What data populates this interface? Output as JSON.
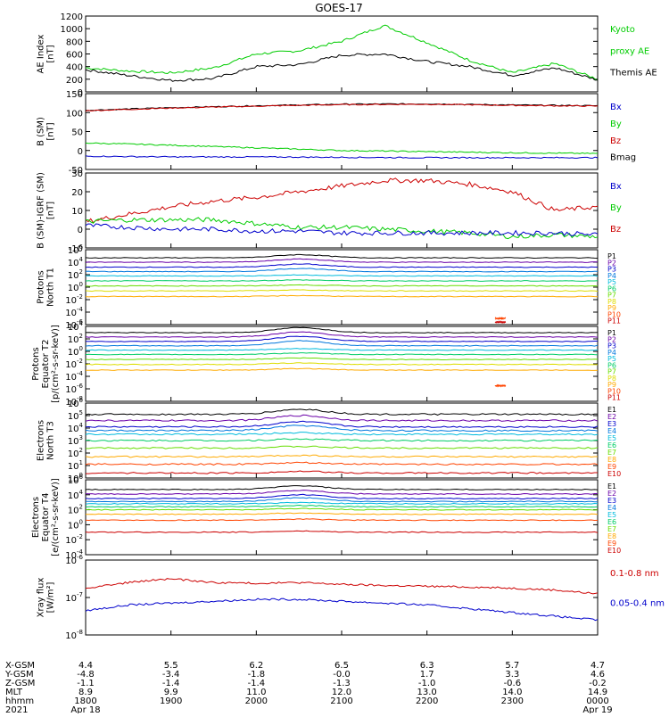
{
  "title": "GOES-17",
  "panels": [
    {
      "id": "ae",
      "ylabel": [
        "AE Index",
        "[nT]"
      ],
      "ticks": [
        "1200",
        "1000",
        "800",
        "600",
        "400",
        "200",
        "0"
      ],
      "legend": [
        {
          "text": "Kyoto",
          "color": "#00cc00"
        },
        {
          "text": "proxy AE",
          "color": "#00cc00"
        },
        {
          "text": "Themis AE",
          "color": "#000000"
        }
      ]
    },
    {
      "id": "b_sm",
      "ylabel": [
        "B (SM)",
        "[nT]"
      ],
      "ticks": [
        "150",
        "100",
        "50",
        "0",
        "-50"
      ],
      "legend": [
        {
          "text": "Bx",
          "color": "#0000cc"
        },
        {
          "text": "By",
          "color": "#00cc00"
        },
        {
          "text": "Bz",
          "color": "#cc0000"
        },
        {
          "text": "Bmag",
          "color": "#000000"
        }
      ]
    },
    {
      "id": "b_igrf",
      "ylabel": [
        "B (SM)-IGRF (SM)",
        "[nT]"
      ],
      "ticks": [
        "30",
        "20",
        "10",
        "0",
        "-10"
      ],
      "legend": [
        {
          "text": "Bx",
          "color": "#0000cc"
        },
        {
          "text": "By",
          "color": "#00cc00"
        },
        {
          "text": "Bz",
          "color": "#cc0000"
        }
      ]
    },
    {
      "id": "p_north",
      "ylabel": [
        "Protons",
        "North T1"
      ],
      "ticks": [
        "10^6",
        "10^4",
        "10^2",
        "10^0",
        "10^-2",
        "10^-4",
        "10^-6"
      ],
      "legend": [
        {
          "text": "P1",
          "color": "#000000"
        },
        {
          "text": "P2",
          "color": "#6a00a8"
        },
        {
          "text": "P3",
          "color": "#0000cc"
        },
        {
          "text": "P4",
          "color": "#0077dd"
        },
        {
          "text": "P5",
          "color": "#00bbdd"
        },
        {
          "text": "P6",
          "color": "#00cc66"
        },
        {
          "text": "P7",
          "color": "#66dd00"
        },
        {
          "text": "P8",
          "color": "#dddd00"
        },
        {
          "text": "P9",
          "color": "#ffaa00"
        },
        {
          "text": "P10",
          "color": "#ff4400"
        },
        {
          "text": "P11",
          "color": "#cc0000"
        }
      ]
    },
    {
      "id": "p_eq",
      "ylabel": [
        "Protons",
        "Equator T2",
        "[p/(cm²-s-sr-keV)]"
      ],
      "ticks": [
        "10^4",
        "10^2",
        "10^0",
        "10^-2",
        "10^-4",
        "10^-6",
        "10^-8"
      ],
      "legend": [
        {
          "text": "P1",
          "color": "#000000"
        },
        {
          "text": "P2",
          "color": "#6a00a8"
        },
        {
          "text": "P3",
          "color": "#0000cc"
        },
        {
          "text": "P4",
          "color": "#0077dd"
        },
        {
          "text": "P5",
          "color": "#00bbdd"
        },
        {
          "text": "P6",
          "color": "#00cc66"
        },
        {
          "text": "P7",
          "color": "#66dd00"
        },
        {
          "text": "P8",
          "color": "#dddd00"
        },
        {
          "text": "P9",
          "color": "#ffaa00"
        },
        {
          "text": "P10",
          "color": "#ff4400"
        },
        {
          "text": "P11",
          "color": "#cc0000"
        }
      ]
    },
    {
      "id": "e_north",
      "ylabel": [
        "Electrons",
        "North T3"
      ],
      "ticks": [
        "10^6",
        "10^5",
        "10^4",
        "10^3",
        "10^2",
        "10^1",
        "10^0"
      ],
      "legend": [
        {
          "text": "E1",
          "color": "#000000"
        },
        {
          "text": "E2",
          "color": "#6a00a8"
        },
        {
          "text": "E3",
          "color": "#0000cc"
        },
        {
          "text": "E4",
          "color": "#0077dd"
        },
        {
          "text": "E5",
          "color": "#00bbdd"
        },
        {
          "text": "E6",
          "color": "#00cc66"
        },
        {
          "text": "E7",
          "color": "#66dd00"
        },
        {
          "text": "E8",
          "color": "#ffaa00"
        },
        {
          "text": "E9",
          "color": "#ff4400"
        },
        {
          "text": "E10",
          "color": "#cc0000"
        }
      ]
    },
    {
      "id": "e_eq",
      "ylabel": [
        "Electrons",
        "Equator T4",
        "[e/(cm²-s-sr-keV)]"
      ],
      "ticks": [
        "10^6",
        "10^4",
        "10^2",
        "10^0",
        "10^-2",
        "10^-4"
      ],
      "legend": [
        {
          "text": "E1",
          "color": "#000000"
        },
        {
          "text": "E2",
          "color": "#6a00a8"
        },
        {
          "text": "E3",
          "color": "#0000cc"
        },
        {
          "text": "E4",
          "color": "#0077dd"
        },
        {
          "text": "E5",
          "color": "#00bbdd"
        },
        {
          "text": "E6",
          "color": "#00cc66"
        },
        {
          "text": "E7",
          "color": "#66dd00"
        },
        {
          "text": "E8",
          "color": "#ffaa00"
        },
        {
          "text": "E9",
          "color": "#ff4400"
        },
        {
          "text": "E10",
          "color": "#cc0000"
        }
      ]
    },
    {
      "id": "xray",
      "ylabel": [
        "Xray flux",
        "[W/m²]"
      ],
      "ticks": [
        "10^-6",
        "10^-7",
        "10^-8"
      ],
      "legend": [
        {
          "text": "0.1-0.8 nm",
          "color": "#cc0000"
        },
        {
          "text": "0.05-0.4 nm",
          "color": "#0000cc"
        }
      ]
    }
  ],
  "bottom_axis": {
    "row_labels": [
      "X-GSM",
      "Y-GSM",
      "Z-GSM",
      "MLT",
      "hhmm",
      "2021"
    ],
    "columns": [
      [
        "4.4",
        "-4.8",
        "-1.1",
        "8.9",
        "1800",
        "Apr 18"
      ],
      [
        "5.5",
        "-3.4",
        "-1.4",
        "9.9",
        "1900",
        ""
      ],
      [
        "6.2",
        "-1.8",
        "-1.4",
        "11.0",
        "2000",
        ""
      ],
      [
        "6.5",
        "-0.0",
        "-1.3",
        "12.0",
        "2100",
        ""
      ],
      [
        "6.3",
        "1.7",
        "-1.0",
        "13.0",
        "2200",
        ""
      ],
      [
        "5.7",
        "3.3",
        "-0.6",
        "14.0",
        "2300",
        ""
      ],
      [
        "4.7",
        "4.6",
        "-0.2",
        "14.9",
        "0000",
        "Apr 19"
      ]
    ]
  },
  "chart_data": [
    {
      "type": "line",
      "title": "GOES-17",
      "ylabel": "AE Index [nT]",
      "ylim": [
        0,
        1200
      ],
      "x": [
        "1800",
        "1830",
        "1900",
        "1930",
        "2000",
        "2030",
        "2100",
        "2130",
        "2200",
        "2230",
        "2300",
        "2330",
        "0000"
      ],
      "series": [
        {
          "name": "Kyoto proxy AE",
          "color": "#00cc00",
          "values": [
            380,
            330,
            300,
            380,
            600,
            650,
            800,
            1050,
            780,
            500,
            300,
            450,
            200
          ]
        },
        {
          "name": "Themis AE",
          "color": "#000000",
          "values": [
            350,
            260,
            180,
            210,
            400,
            430,
            580,
            600,
            480,
            400,
            260,
            380,
            190
          ]
        }
      ]
    },
    {
      "type": "line",
      "ylabel": "B (SM) [nT]",
      "ylim": [
        -50,
        150
      ],
      "x": [
        "1800",
        "1900",
        "2000",
        "2100",
        "2200",
        "2300",
        "0000"
      ],
      "series": [
        {
          "name": "Bmag",
          "color": "#000000",
          "values": [
            106,
            113,
            118,
            122,
            123,
            120,
            118
          ]
        },
        {
          "name": "Bz",
          "color": "#cc0000",
          "values": [
            105,
            112,
            117,
            121,
            122,
            119,
            117
          ]
        },
        {
          "name": "By",
          "color": "#00cc00",
          "values": [
            20,
            14,
            7,
            0,
            -3,
            -6,
            -8
          ]
        },
        {
          "name": "Bx",
          "color": "#0000cc",
          "values": [
            -15,
            -17,
            -17,
            -18,
            -19,
            -19,
            -19
          ]
        }
      ]
    },
    {
      "type": "line",
      "ylabel": "B (SM)-IGRF (SM) [nT]",
      "ylim": [
        -10,
        30
      ],
      "x": [
        "1800",
        "1830",
        "1900",
        "1930",
        "2000",
        "2030",
        "2100",
        "2130",
        "2200",
        "2230",
        "2300",
        "2330",
        "0000"
      ],
      "series": [
        {
          "name": "Bz",
          "color": "#cc0000",
          "values": [
            4,
            8,
            12,
            15,
            17,
            20,
            23,
            26,
            26,
            24,
            20,
            10,
            12
          ]
        },
        {
          "name": "By",
          "color": "#00cc00",
          "values": [
            4,
            5,
            5,
            5,
            3,
            1,
            1,
            0,
            -1,
            -2,
            -4,
            -3,
            -4
          ]
        },
        {
          "name": "Bx",
          "color": "#0000cc",
          "values": [
            2,
            1,
            0,
            0,
            -1,
            -1,
            -2,
            -2,
            -2,
            -2,
            -2,
            -2,
            -3
          ]
        }
      ]
    },
    {
      "type": "line",
      "ylabel": "Protons North T1",
      "log": true,
      "ylim": [
        -6,
        6
      ],
      "series": [
        {
          "name": "P1",
          "log_level": 4.7
        },
        {
          "name": "P2",
          "log_level": 4.0
        },
        {
          "name": "P3",
          "log_level": 3.2
        },
        {
          "name": "P4",
          "log_level": 2.5
        },
        {
          "name": "P5",
          "log_level": 1.8
        },
        {
          "name": "P6",
          "log_level": 1.0
        },
        {
          "name": "P7",
          "log_level": 0.2
        },
        {
          "name": "P8",
          "log_level": -0.6
        },
        {
          "name": "P9",
          "log_level": -1.5
        },
        {
          "name": "P10",
          "log_level": -5.0
        },
        {
          "name": "P11",
          "log_level": -5.6
        }
      ]
    },
    {
      "type": "line",
      "ylabel": "Protons Equator T2 [p/(cm2-s-sr-keV)]",
      "log": true,
      "ylim": [
        -8,
        4
      ],
      "series": [
        {
          "name": "P1",
          "log_level": 3.0
        },
        {
          "name": "P2",
          "log_level": 2.3
        },
        {
          "name": "P3",
          "log_level": 1.6
        },
        {
          "name": "P4",
          "log_level": 0.9
        },
        {
          "name": "P5",
          "log_level": 0.2
        },
        {
          "name": "P6",
          "log_level": -0.5
        },
        {
          "name": "P7",
          "log_level": -1.3
        },
        {
          "name": "P8",
          "log_level": -2.1
        },
        {
          "name": "P9",
          "log_level": -3.0
        },
        {
          "name": "P10",
          "log_level": -5.5
        }
      ]
    },
    {
      "type": "line",
      "ylabel": "Electrons North T3",
      "log": true,
      "ylim": [
        0,
        6
      ],
      "series": [
        {
          "name": "E1",
          "log_level": 5.1
        },
        {
          "name": "E2",
          "log_level": 4.6
        },
        {
          "name": "E3",
          "log_level": 4.1
        },
        {
          "name": "E4",
          "log_level": 3.8
        },
        {
          "name": "E5",
          "log_level": 3.5
        },
        {
          "name": "E6",
          "log_level": 3.0
        },
        {
          "name": "E7",
          "log_level": 2.4
        },
        {
          "name": "E8",
          "log_level": 1.7
        },
        {
          "name": "E9",
          "log_level": 1.1
        },
        {
          "name": "E10",
          "log_level": 0.4
        }
      ]
    },
    {
      "type": "line",
      "ylabel": "Electrons Equator T4 [e/(cm2-s-sr-keV)]",
      "log": true,
      "ylim": [
        -4,
        6
      ],
      "series": [
        {
          "name": "E1",
          "log_level": 4.7
        },
        {
          "name": "E2",
          "log_level": 4.1
        },
        {
          "name": "E3",
          "log_level": 3.5
        },
        {
          "name": "E4",
          "log_level": 3.1
        },
        {
          "name": "E5",
          "log_level": 2.8
        },
        {
          "name": "E6",
          "log_level": 2.4
        },
        {
          "name": "E7",
          "log_level": 2.0
        },
        {
          "name": "E8",
          "log_level": 1.4
        },
        {
          "name": "E9",
          "log_level": 0.6
        },
        {
          "name": "E10",
          "log_level": -1.0
        }
      ]
    },
    {
      "type": "line",
      "ylabel": "Xray flux [W/m2]",
      "log": true,
      "ylim": [
        -8,
        -6
      ],
      "series": [
        {
          "name": "0.1-0.8 nm",
          "color": "#cc0000",
          "log_values": [
            -6.75,
            -6.6,
            -6.5,
            -6.6,
            -6.62,
            -6.6,
            -6.65,
            -6.68,
            -6.7,
            -6.72,
            -6.75,
            -6.8,
            -6.9
          ]
        },
        {
          "name": "0.05-0.4 nm",
          "color": "#0000cc",
          "log_values": [
            -7.35,
            -7.2,
            -7.15,
            -7.1,
            -7.05,
            -7.05,
            -7.1,
            -7.15,
            -7.2,
            -7.3,
            -7.4,
            -7.5,
            -7.6
          ]
        }
      ]
    }
  ]
}
